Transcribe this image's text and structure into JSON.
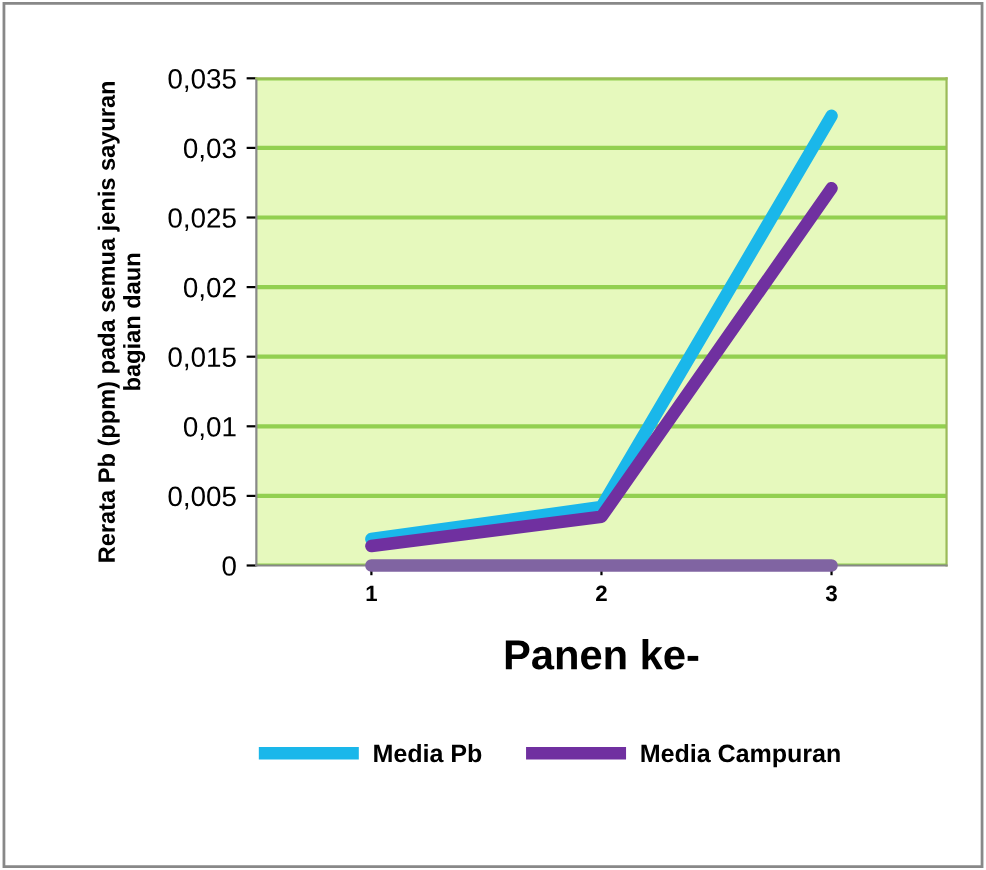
{
  "chart_data": {
    "type": "line",
    "xlabel": "Panen ke-",
    "ylabel": "Rerata Pb (ppm) pada semua jenis sayuran\nbagian daun",
    "categories": [
      "1",
      "2",
      "3"
    ],
    "series": [
      {
        "name": "Media Pb",
        "color": "#1ab7ea",
        "values": [
          0.0019,
          0.0042,
          0.0323
        ]
      },
      {
        "name": "Media Campuran",
        "color": "#7030a0",
        "values": [
          0.0014,
          0.0035,
          0.0271
        ]
      },
      {
        "color": "#8064a2",
        "values": [
          0,
          0,
          0
        ]
      }
    ],
    "ylim": [
      0,
      0.035
    ],
    "yticks": [
      0,
      {
        "value": 0.005,
        "label": "0,005"
      },
      {
        "value": 0.01,
        "label": "0,01"
      },
      {
        "value": 0.015,
        "label": "0,015"
      },
      {
        "value": 0.02,
        "label": "0,02"
      },
      {
        "value": 0.025,
        "label": "0,025"
      },
      {
        "value": 0.03,
        "label": "0,03"
      },
      {
        "value": 0.035,
        "label": "0,035"
      }
    ],
    "grid": "y",
    "legend": "bottom",
    "marker": "none",
    "line_style": "solid"
  }
}
